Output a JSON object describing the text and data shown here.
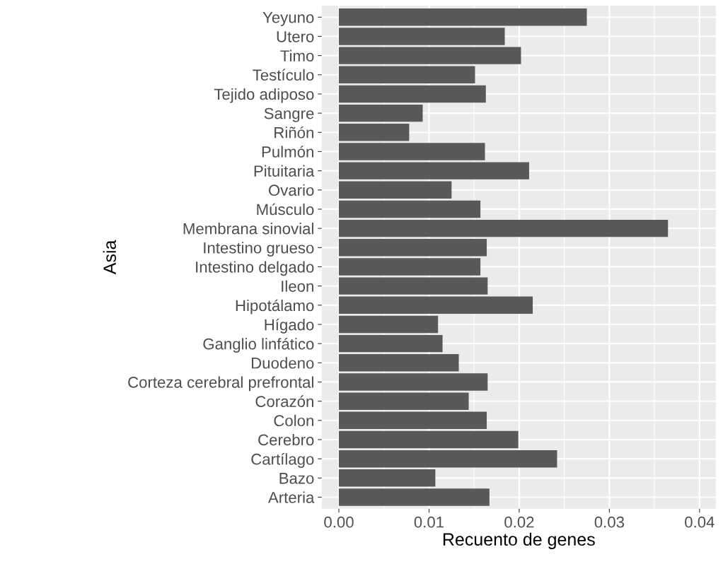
{
  "chart_data": {
    "type": "bar",
    "orientation": "horizontal",
    "xlabel": "Recuento de genes",
    "ylabel": "Asia",
    "categories": [
      "Yeyuno",
      "Utero",
      "Timo",
      "Testículo",
      "Tejido adiposo",
      "Sangre",
      "Riñón",
      "Pulmón",
      "Pituitaria",
      "Ovario",
      "Músculo",
      "Membrana sinovial",
      "Intestino grueso",
      "Intestino delgado",
      "Ileon",
      "Hipotálamo",
      "Hígado",
      "Ganglio linfático",
      "Duodeno",
      "Corteza cerebral prefrontal",
      "Corazón",
      "Colon",
      "Cerebro",
      "Cartílago",
      "Bazo",
      "Arteria"
    ],
    "values": [
      0.0275,
      0.0184,
      0.0202,
      0.0151,
      0.0163,
      0.0093,
      0.0078,
      0.0162,
      0.0211,
      0.0125,
      0.0157,
      0.0365,
      0.0164,
      0.0157,
      0.0165,
      0.0215,
      0.011,
      0.0115,
      0.0133,
      0.0165,
      0.0144,
      0.0164,
      0.0199,
      0.0242,
      0.0107,
      0.0167
    ],
    "color": "#595959",
    "xlim": [
      -0.0019,
      0.0418
    ],
    "xticks": [
      {
        "value": 0,
        "label": "0.00"
      },
      {
        "value": 0.01,
        "label": "0.01"
      },
      {
        "value": 0.02,
        "label": "0.02"
      },
      {
        "value": 0.03,
        "label": "0.03"
      },
      {
        "value": 0.04,
        "label": "0.04"
      }
    ],
    "grid": true,
    "legend": false
  }
}
